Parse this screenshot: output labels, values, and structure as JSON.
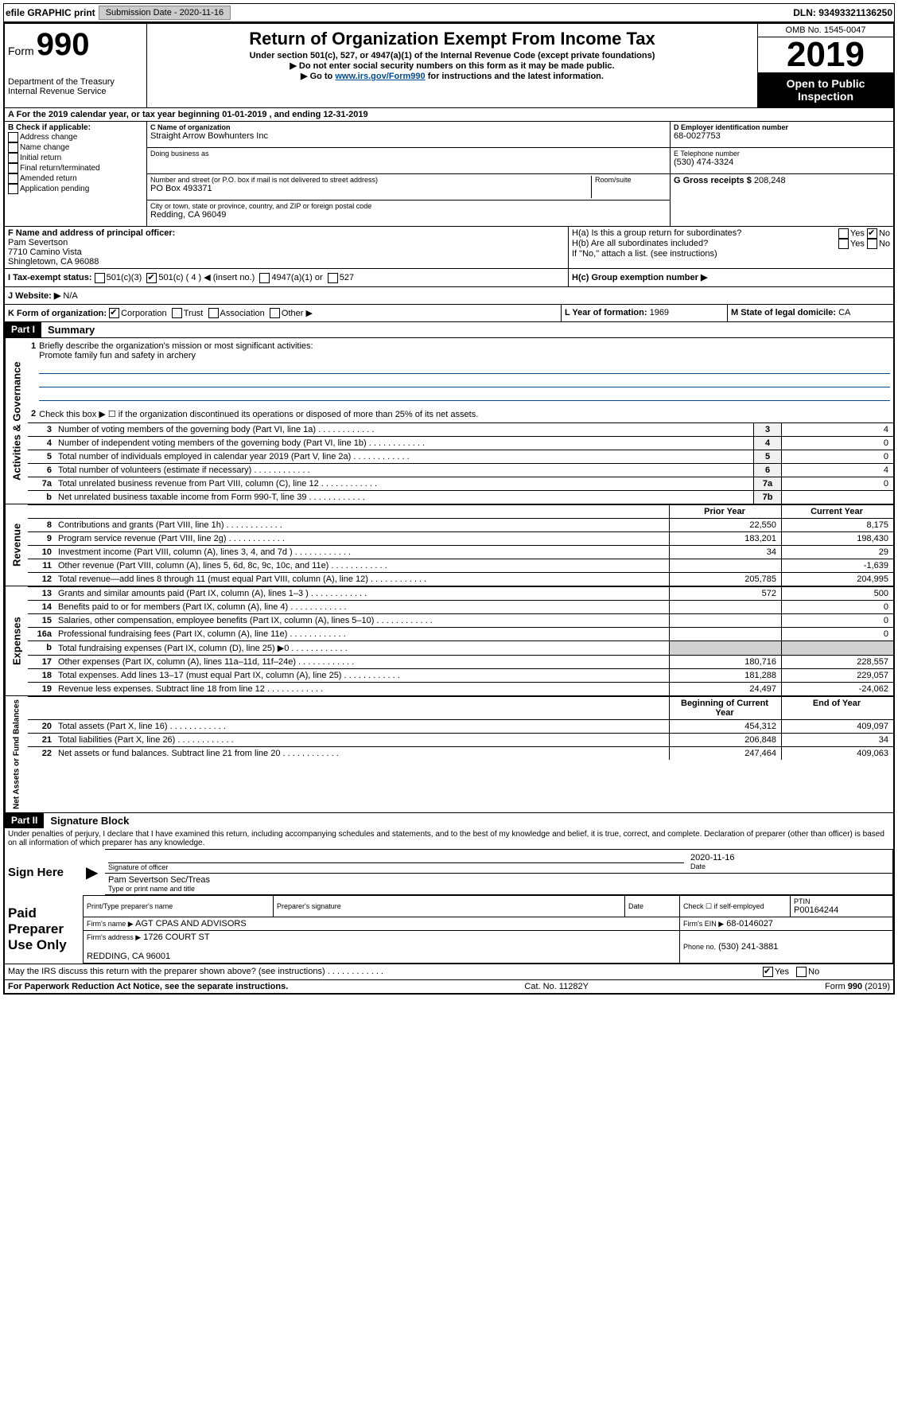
{
  "topbar": {
    "efile": "efile GRAPHIC print",
    "submission_label": "Submission Date - 2020-11-16",
    "dln": "DLN: 93493321136250"
  },
  "header": {
    "form_label": "Form",
    "form_num": "990",
    "dept": "Department of the Treasury\nInternal Revenue Service",
    "title": "Return of Organization Exempt From Income Tax",
    "subtitle": "Under section 501(c), 527, or 4947(a)(1) of the Internal Revenue Code (except private foundations)",
    "note1": "▶ Do not enter social security numbers on this form as it may be made public.",
    "note2_pre": "▶ Go to ",
    "note2_link": "www.irs.gov/Form990",
    "note2_post": " for instructions and the latest information.",
    "omb": "OMB No. 1545-0047",
    "year": "2019",
    "open": "Open to Public Inspection"
  },
  "period": {
    "text": "For the 2019 calendar year, or tax year beginning 01-01-2019   , and ending 12-31-2019"
  },
  "boxB": {
    "label": "B Check if applicable:",
    "items": [
      "Address change",
      "Name change",
      "Initial return",
      "Final return/terminated",
      "Amended return",
      "Application pending"
    ]
  },
  "boxC": {
    "name_label": "C Name of organization",
    "name": "Straight Arrow Bowhunters Inc",
    "dba_label": "Doing business as",
    "addr_label": "Number and street (or P.O. box if mail is not delivered to street address)",
    "room_label": "Room/suite",
    "addr": "PO Box 493371",
    "city_label": "City or town, state or province, country, and ZIP or foreign postal code",
    "city": "Redding, CA  96049"
  },
  "boxD": {
    "label": "D Employer identification number",
    "val": "68-0027753"
  },
  "boxE": {
    "label": "E Telephone number",
    "val": "(530) 474-3324"
  },
  "boxG": {
    "label": "G Gross receipts $",
    "val": "208,248"
  },
  "boxF": {
    "label": "F  Name and address of principal officer:",
    "name": "Pam Severtson",
    "addr1": "7710 Camino Vista",
    "addr2": "Shingletown, CA  96088"
  },
  "boxH": {
    "ha": "H(a)  Is this a group return for subordinates?",
    "hb": "H(b)  Are all subordinates included?",
    "hb_note": "If \"No,\" attach a list. (see instructions)",
    "hc": "H(c)  Group exemption number ▶",
    "yes": "Yes",
    "no": "No"
  },
  "boxI": {
    "label": "I   Tax-exempt status:",
    "o1": "501(c)(3)",
    "o2": "501(c) ( 4 ) ◀ (insert no.)",
    "o3": "4947(a)(1) or",
    "o4": "527"
  },
  "boxJ": {
    "label": "J   Website: ▶",
    "val": "N/A"
  },
  "boxK": {
    "label": "K Form of organization:",
    "o1": "Corporation",
    "o2": "Trust",
    "o3": "Association",
    "o4": "Other ▶"
  },
  "boxL": {
    "label": "L Year of formation:",
    "val": "1969"
  },
  "boxM": {
    "label": "M State of legal domicile:",
    "val": "CA"
  },
  "part1": {
    "header": "Part I",
    "title": "Summary",
    "line1_label": "Briefly describe the organization's mission or most significant activities:",
    "line1_val": "Promote family fun and safety in archery",
    "line2": "Check this box ▶ ☐  if the organization discontinued its operations or disposed of more than 25% of its net assets.",
    "rows_gov": [
      {
        "n": "3",
        "t": "Number of voting members of the governing body (Part VI, line 1a)",
        "b": "3",
        "v": "4"
      },
      {
        "n": "4",
        "t": "Number of independent voting members of the governing body (Part VI, line 1b)",
        "b": "4",
        "v": "0"
      },
      {
        "n": "5",
        "t": "Total number of individuals employed in calendar year 2019 (Part V, line 2a)",
        "b": "5",
        "v": "0"
      },
      {
        "n": "6",
        "t": "Total number of volunteers (estimate if necessary)",
        "b": "6",
        "v": "4"
      },
      {
        "n": "7a",
        "t": "Total unrelated business revenue from Part VIII, column (C), line 12",
        "b": "7a",
        "v": "0"
      },
      {
        "n": "b",
        "t": "Net unrelated business taxable income from Form 990-T, line 39",
        "b": "7b",
        "v": ""
      }
    ],
    "col_prior": "Prior Year",
    "col_current": "Current Year",
    "rows_rev": [
      {
        "n": "8",
        "t": "Contributions and grants (Part VIII, line 1h)",
        "p": "22,550",
        "c": "8,175"
      },
      {
        "n": "9",
        "t": "Program service revenue (Part VIII, line 2g)",
        "p": "183,201",
        "c": "198,430"
      },
      {
        "n": "10",
        "t": "Investment income (Part VIII, column (A), lines 3, 4, and 7d )",
        "p": "34",
        "c": "29"
      },
      {
        "n": "11",
        "t": "Other revenue (Part VIII, column (A), lines 5, 6d, 8c, 9c, 10c, and 11e)",
        "p": "",
        "c": "-1,639"
      },
      {
        "n": "12",
        "t": "Total revenue—add lines 8 through 11 (must equal Part VIII, column (A), line 12)",
        "p": "205,785",
        "c": "204,995"
      }
    ],
    "rows_exp": [
      {
        "n": "13",
        "t": "Grants and similar amounts paid (Part IX, column (A), lines 1–3 )",
        "p": "572",
        "c": "500"
      },
      {
        "n": "14",
        "t": "Benefits paid to or for members (Part IX, column (A), line 4)",
        "p": "",
        "c": "0"
      },
      {
        "n": "15",
        "t": "Salaries, other compensation, employee benefits (Part IX, column (A), lines 5–10)",
        "p": "",
        "c": "0"
      },
      {
        "n": "16a",
        "t": "Professional fundraising fees (Part IX, column (A), line 11e)",
        "p": "",
        "c": "0"
      },
      {
        "n": "b",
        "t": "Total fundraising expenses (Part IX, column (D), line 25) ▶0",
        "p": "shade",
        "c": "shade"
      },
      {
        "n": "17",
        "t": "Other expenses (Part IX, column (A), lines 11a–11d, 11f–24e)",
        "p": "180,716",
        "c": "228,557"
      },
      {
        "n": "18",
        "t": "Total expenses. Add lines 13–17 (must equal Part IX, column (A), line 25)",
        "p": "181,288",
        "c": "229,057"
      },
      {
        "n": "19",
        "t": "Revenue less expenses. Subtract line 18 from line 12",
        "p": "24,497",
        "c": "-24,062"
      }
    ],
    "col_beg": "Beginning of Current Year",
    "col_end": "End of Year",
    "rows_net": [
      {
        "n": "20",
        "t": "Total assets (Part X, line 16)",
        "p": "454,312",
        "c": "409,097"
      },
      {
        "n": "21",
        "t": "Total liabilities (Part X, line 26)",
        "p": "206,848",
        "c": "34"
      },
      {
        "n": "22",
        "t": "Net assets or fund balances. Subtract line 21 from line 20",
        "p": "247,464",
        "c": "409,063"
      }
    ]
  },
  "vlabels": {
    "gov": "Activities & Governance",
    "rev": "Revenue",
    "exp": "Expenses",
    "net": "Net Assets or Fund Balances"
  },
  "part2": {
    "header": "Part II",
    "title": "Signature Block",
    "decl": "Under penalties of perjury, I declare that I have examined this return, including accompanying schedules and statements, and to the best of my knowledge and belief, it is true, correct, and complete. Declaration of preparer (other than officer) is based on all information of which preparer has any knowledge.",
    "sign_here": "Sign Here",
    "sig_officer": "Signature of officer",
    "date": "Date",
    "date_val": "2020-11-16",
    "name_title": "Pam Severtson  Sec/Treas",
    "name_title_label": "Type or print name and title",
    "paid": "Paid Preparer Use Only",
    "prep_name_label": "Print/Type preparer's name",
    "prep_sig_label": "Preparer's signature",
    "check_self": "Check ☐ if self-employed",
    "ptin_label": "PTIN",
    "ptin": "P00164244",
    "firm_name_label": "Firm's name    ▶",
    "firm_name": "AGT CPAS AND ADVISORS",
    "firm_ein_label": "Firm's EIN ▶",
    "firm_ein": "68-0146027",
    "firm_addr_label": "Firm's address ▶",
    "firm_addr": "1726 COURT ST\n\nREDDING, CA  96001",
    "phone_label": "Phone no.",
    "phone": "(530) 241-3881",
    "discuss": "May the IRS discuss this return with the preparer shown above? (see instructions)",
    "yes": "Yes",
    "no": "No"
  },
  "footer": {
    "left": "For Paperwork Reduction Act Notice, see the separate instructions.",
    "mid": "Cat. No. 11282Y",
    "right": "Form 990 (2019)"
  }
}
